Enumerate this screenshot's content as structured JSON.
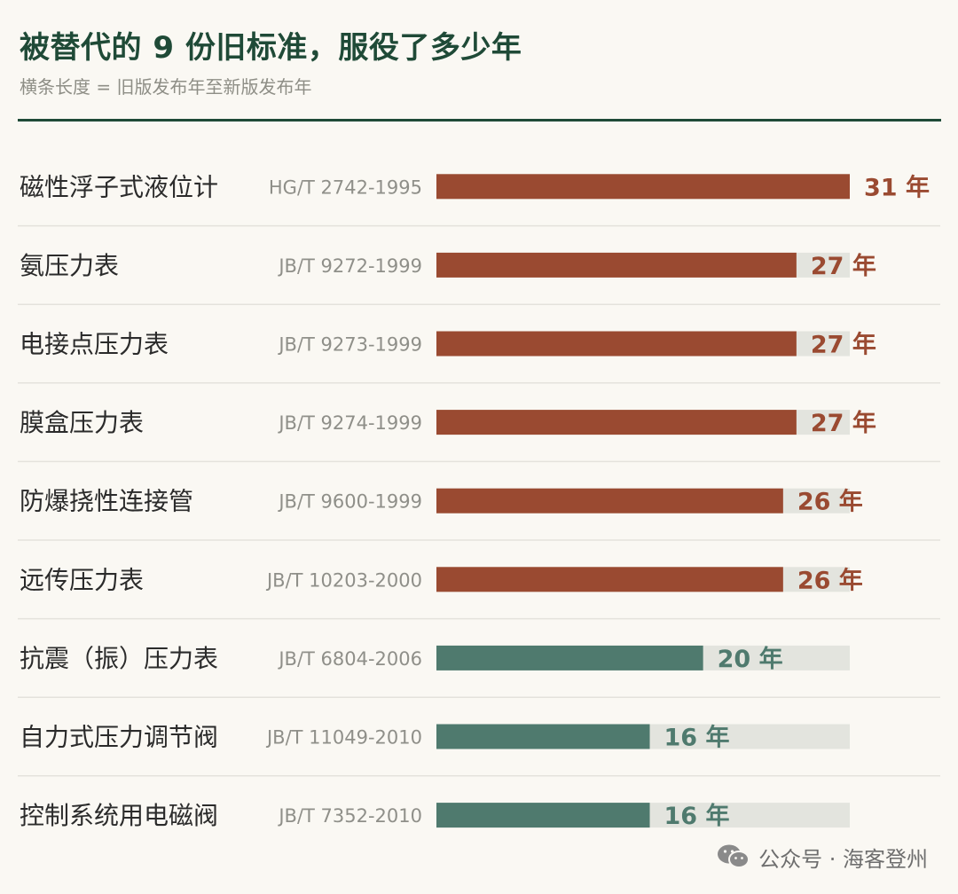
{
  "header": {
    "title": "被替代的 9 份旧标准，服役了多少年",
    "subtitle": "横条长度 = 旧版发布年至新版发布年"
  },
  "colors": {
    "accent_long": "#9a4a31",
    "accent_short": "#4f7a6e",
    "track": "#e3e4de",
    "divider": "#e4e2dc",
    "title": "#1f4a37",
    "label": "#2b2b2b",
    "code": "#8f8f89"
  },
  "chart_data": {
    "type": "bar",
    "orientation": "horizontal",
    "value_suffix": " 年",
    "xlim": [
      0,
      31
    ],
    "categories": [
      "磁性浮子式液位计",
      "氨压力表",
      "电接点压力表",
      "膜盒压力表",
      "防爆挠性连接管",
      "远传压力表",
      "抗震（振）压力表",
      "自力式压力调节阀",
      "控制系统用电磁阀"
    ],
    "codes": [
      "HG/T 2742-1995",
      "JB/T 9272-1999",
      "JB/T 9273-1999",
      "JB/T 9274-1999",
      "JB/T 9600-1999",
      "JB/T 10203-2000",
      "JB/T 6804-2006",
      "JB/T 11049-2010",
      "JB/T 7352-2010"
    ],
    "values": [
      31,
      27,
      27,
      27,
      26,
      26,
      20,
      16,
      16
    ],
    "groups": [
      "long",
      "long",
      "long",
      "long",
      "long",
      "long",
      "short",
      "short",
      "short"
    ]
  },
  "watermark": {
    "text": "公众号 · 海客登州"
  }
}
